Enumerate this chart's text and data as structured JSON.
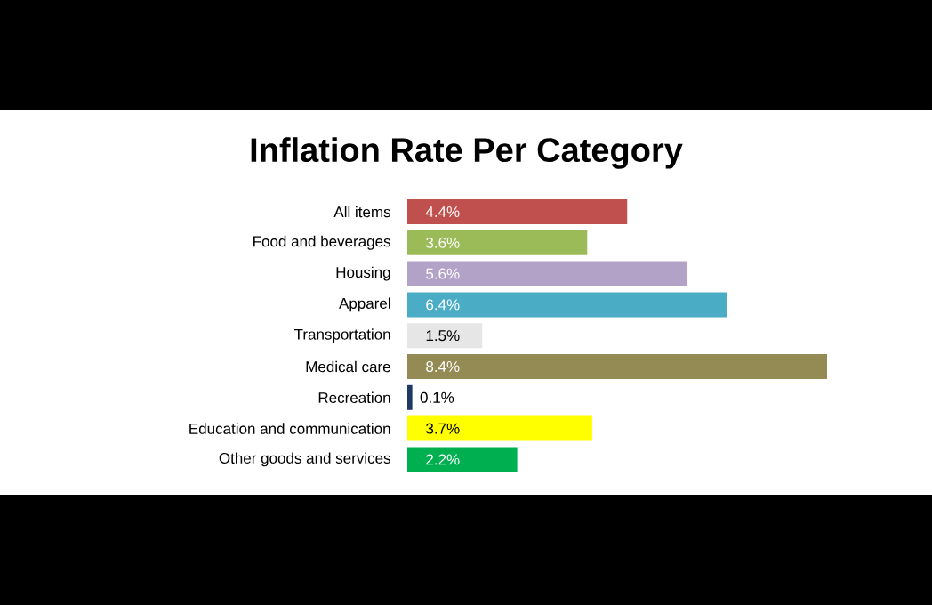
{
  "chart_data": {
    "type": "bar",
    "orientation": "horizontal",
    "title": "Inflation Rate Per Category",
    "categories": [
      "All items",
      "Food and beverages",
      "Housing",
      "Apparel",
      "Transportation",
      "Medical care",
      "Recreation",
      "Education and communication",
      "Other goods and services"
    ],
    "values": [
      4.4,
      3.6,
      5.6,
      6.4,
      1.5,
      8.4,
      0.1,
      3.7,
      2.2
    ],
    "value_labels": [
      "4.4%",
      "3.6%",
      "5.6%",
      "6.4%",
      "1.5%",
      "8.4%",
      "0.1%",
      "3.7%",
      "2.2%"
    ],
    "colors": [
      "#c0504d",
      "#9bbb59",
      "#b3a2c7",
      "#4bacc6",
      "#e6e6e6",
      "#948a54",
      "#1f3864",
      "#ffff00",
      "#00b050"
    ]
  }
}
